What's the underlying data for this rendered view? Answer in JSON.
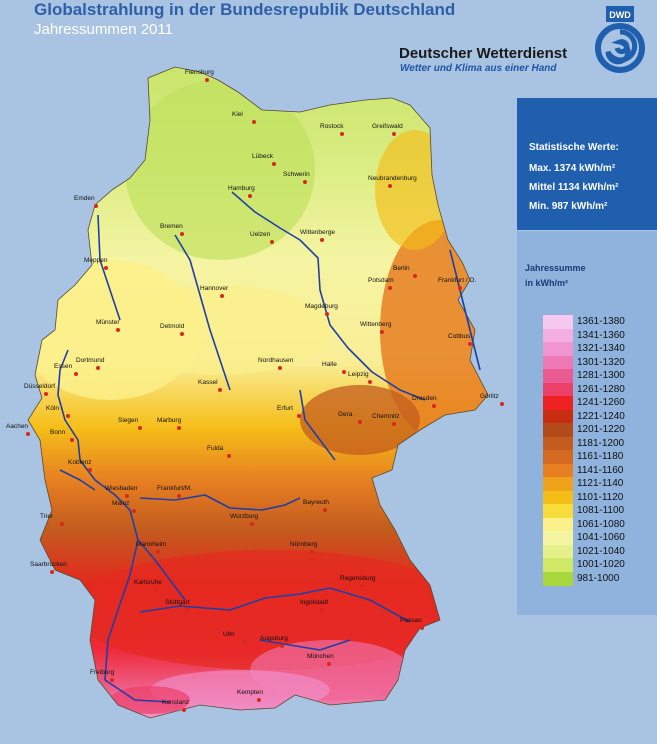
{
  "header": {
    "title": "Globalstrahlung in der Bundesrepublik Deutschland",
    "subtitle": "Jahressummen 2011"
  },
  "brand": {
    "name": "Deutscher Wetterdienst",
    "slogan": "Wetter und Klima aus einer Hand",
    "logo_text": "DWD"
  },
  "stats": {
    "heading": "Statistische Werte:",
    "max": "Max. 1374 kWh/m²",
    "mean": "Mittel 1134 kWh/m²",
    "min": "Min. 987 kWh/m²"
  },
  "legend": {
    "title_line1": "Jahressumme",
    "title_line2": "in kWh/m²",
    "items": [
      {
        "label": "1361-1380",
        "color": "#f7c8ef"
      },
      {
        "label": "1341-1360",
        "color": "#f3afe0"
      },
      {
        "label": "1321-1340",
        "color": "#f095cf"
      },
      {
        "label": "1301-1320",
        "color": "#ec79b4"
      },
      {
        "label": "1281-1300",
        "color": "#ea5a93"
      },
      {
        "label": "1261-1280",
        "color": "#ec3f6a"
      },
      {
        "label": "1241-1260",
        "color": "#ee2222"
      },
      {
        "label": "1221-1240",
        "color": "#c82d12"
      },
      {
        "label": "1201-1220",
        "color": "#b24a1a"
      },
      {
        "label": "1181-1200",
        "color": "#c35c1e"
      },
      {
        "label": "1161-1180",
        "color": "#d46a22"
      },
      {
        "label": "1141-1160",
        "color": "#e67e22"
      },
      {
        "label": "1121-1140",
        "color": "#f0a21c"
      },
      {
        "label": "1101-1120",
        "color": "#f5bd18"
      },
      {
        "label": "1081-1100",
        "color": "#f7dc3a"
      },
      {
        "label": "1061-1080",
        "color": "#fbf08a"
      },
      {
        "label": "1041-1060",
        "color": "#f3f5a0"
      },
      {
        "label": "1021-1040",
        "color": "#e6f08a"
      },
      {
        "label": "1001-1020",
        "color": "#cfe866"
      },
      {
        "label": "981-1000",
        "color": "#a9d63c"
      }
    ]
  },
  "map": {
    "colors": {
      "river": "#1f3fa8",
      "border": "#3a2a1a",
      "city": "#d8281e"
    },
    "cities": [
      "Flensburg",
      "Kiel",
      "Rostock",
      "Greifswald",
      "Lübeck",
      "Schwerin",
      "Neubrandenburg",
      "Emden",
      "Hamburg",
      "Bremen",
      "Uelzen",
      "Wittenberge",
      "Berlin",
      "Potsdam",
      "Frankfurt / O.",
      "Meppen",
      "Hannover",
      "Magdeburg",
      "Münster",
      "Detmold",
      "Wittenberg",
      "Cottbus",
      "Dortmund",
      "Essen",
      "Nordhausen",
      "Halle",
      "Leipzig",
      "Düsseldorf",
      "Kassel",
      "Köln",
      "Siegen",
      "Marburg",
      "Erfurt",
      "Gera",
      "Chemnitz",
      "Dresden",
      "Görlitz",
      "Aachen",
      "Bonn",
      "Fulda",
      "Koblenz",
      "Wiesbaden",
      "Frankfurt/M.",
      "Mainz",
      "Bayreuth",
      "Würzburg",
      "Trier",
      "Mannheim",
      "Nürnberg",
      "Saarbrücken",
      "Karlsruhe",
      "Regensburg",
      "Stuttgart",
      "Ingolstadt",
      "Passau",
      "Ulm",
      "Augsburg",
      "München",
      "Freiburg",
      "Kempten",
      "Konstanz"
    ]
  }
}
